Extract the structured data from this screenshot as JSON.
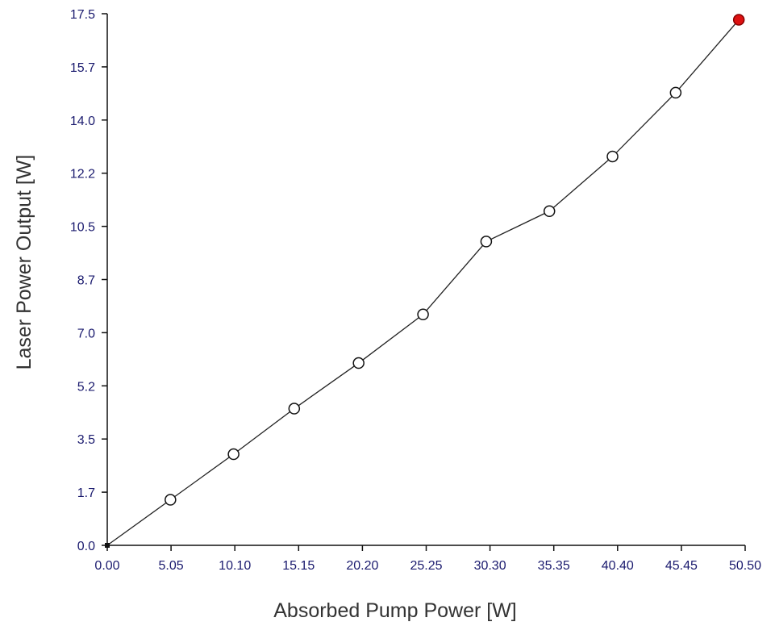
{
  "chart_data": {
    "type": "line",
    "title": "",
    "xlabel": "Absorbed Pump Power [W]",
    "ylabel": "Laser Power Output [W]",
    "xlim": [
      0,
      50.5
    ],
    "ylim": [
      0,
      17.5
    ],
    "x_ticks": [
      "0.00",
      "5.05",
      "10.10",
      "15.15",
      "20.20",
      "25.25",
      "30.30",
      "35.35",
      "40.40",
      "45.45",
      "50.50"
    ],
    "y_ticks": [
      "0.0",
      "1.7",
      "3.5",
      "5.2",
      "7.0",
      "8.7",
      "10.5",
      "12.2",
      "14.0",
      "15.7",
      "17.5"
    ],
    "grid": false,
    "series": [
      {
        "x": [
          0.0,
          5.0,
          10.0,
          14.8,
          19.9,
          25.0,
          30.0,
          35.0,
          40.0,
          45.0,
          50.0
        ],
        "y": [
          0.0,
          1.5,
          3.0,
          4.5,
          6.0,
          7.6,
          10.0,
          11.0,
          12.8,
          14.9,
          17.3
        ],
        "highlight_last": true
      }
    ],
    "colors": {
      "line": "#222222",
      "marker_stroke": "#111111",
      "marker_fill": "#ffffff",
      "highlight": "#dd1111",
      "tick_text": "#1a1a6e",
      "axis_title": "#333333"
    }
  }
}
